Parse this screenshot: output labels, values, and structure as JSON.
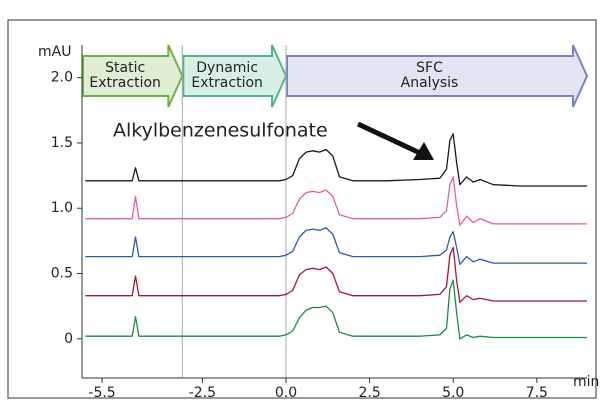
{
  "chart_data": {
    "type": "line",
    "y_label": "mAU",
    "x_label": "min",
    "annotation": "Alkylbenzenesulfonate",
    "phases": [
      {
        "label": [
          "Static",
          "Extraction"
        ],
        "start": -6.1,
        "end": -3.1,
        "color": "#6db33f"
      },
      {
        "label": [
          "Dynamic",
          "Extraction"
        ],
        "start": -3.1,
        "end": 0.0,
        "color": "#4fb58a"
      },
      {
        "label": [
          "SFC",
          "Analysis"
        ],
        "start": 0.0,
        "end": 9.0,
        "color": "#7a82c4"
      }
    ],
    "x": [
      -6.0,
      -5.0,
      -4.6,
      -4.5,
      -4.4,
      -3.5,
      -2.5,
      -1.0,
      -0.2,
      0.0,
      0.2,
      0.4,
      0.6,
      0.8,
      1.0,
      1.2,
      1.4,
      1.6,
      2.0,
      3.0,
      4.0,
      4.6,
      4.8,
      4.9,
      5.0,
      5.1,
      5.2,
      5.4,
      5.6,
      5.8,
      6.2,
      7.0,
      8.0,
      9.0
    ],
    "series": [
      {
        "color": "#1a1a1a",
        "values": [
          1.21,
          1.21,
          1.21,
          1.31,
          1.21,
          1.21,
          1.21,
          1.21,
          1.21,
          1.22,
          1.25,
          1.38,
          1.43,
          1.44,
          1.43,
          1.45,
          1.4,
          1.24,
          1.21,
          1.21,
          1.22,
          1.23,
          1.3,
          1.52,
          1.57,
          1.35,
          1.18,
          1.24,
          1.2,
          1.22,
          1.18,
          1.17,
          1.17,
          1.17
        ]
      },
      {
        "color": "#e0609a",
        "values": [
          0.92,
          0.92,
          0.92,
          1.09,
          0.92,
          0.92,
          0.92,
          0.92,
          0.92,
          0.93,
          0.96,
          1.07,
          1.12,
          1.13,
          1.12,
          1.14,
          1.09,
          0.95,
          0.92,
          0.92,
          0.92,
          0.93,
          0.98,
          1.18,
          1.24,
          1.02,
          0.87,
          0.94,
          0.89,
          0.92,
          0.88,
          0.88,
          0.88,
          0.88
        ]
      },
      {
        "color": "#2a5ca8",
        "values": [
          0.63,
          0.63,
          0.63,
          0.78,
          0.63,
          0.63,
          0.63,
          0.63,
          0.63,
          0.64,
          0.67,
          0.78,
          0.83,
          0.84,
          0.83,
          0.85,
          0.8,
          0.66,
          0.63,
          0.63,
          0.63,
          0.64,
          0.68,
          0.78,
          0.82,
          0.7,
          0.57,
          0.63,
          0.59,
          0.61,
          0.58,
          0.58,
          0.58,
          0.58
        ]
      },
      {
        "color": "#9e1b32",
        "values": [
          0.33,
          0.33,
          0.33,
          0.48,
          0.33,
          0.33,
          0.33,
          0.33,
          0.33,
          0.34,
          0.37,
          0.49,
          0.53,
          0.54,
          0.53,
          0.55,
          0.5,
          0.36,
          0.33,
          0.33,
          0.33,
          0.34,
          0.4,
          0.64,
          0.7,
          0.45,
          0.28,
          0.33,
          0.3,
          0.31,
          0.29,
          0.29,
          0.29,
          0.29
        ]
      },
      {
        "color": "#1e8a45",
        "values": [
          0.02,
          0.02,
          0.02,
          0.17,
          0.02,
          0.02,
          0.02,
          0.02,
          0.02,
          0.03,
          0.06,
          0.16,
          0.22,
          0.24,
          0.24,
          0.25,
          0.2,
          0.05,
          0.02,
          0.02,
          0.02,
          0.03,
          0.08,
          0.38,
          0.45,
          0.2,
          0.0,
          0.03,
          0.01,
          0.02,
          0.01,
          0.01,
          0.01,
          0.01
        ]
      }
    ],
    "xlim": [
      -6.1,
      9.0
    ],
    "xticks": [
      -5.5,
      -2.5,
      {
        "value": 0,
        "label": "0.0"
      },
      2.5,
      {
        "value": 5,
        "label": "5.0"
      },
      7.5
    ],
    "ylim": [
      -0.3,
      2.25
    ],
    "yticks": [
      0,
      0.5,
      {
        "value": 1,
        "label": "1.0"
      },
      1.5,
      {
        "value": 2,
        "label": "2.0"
      }
    ]
  }
}
